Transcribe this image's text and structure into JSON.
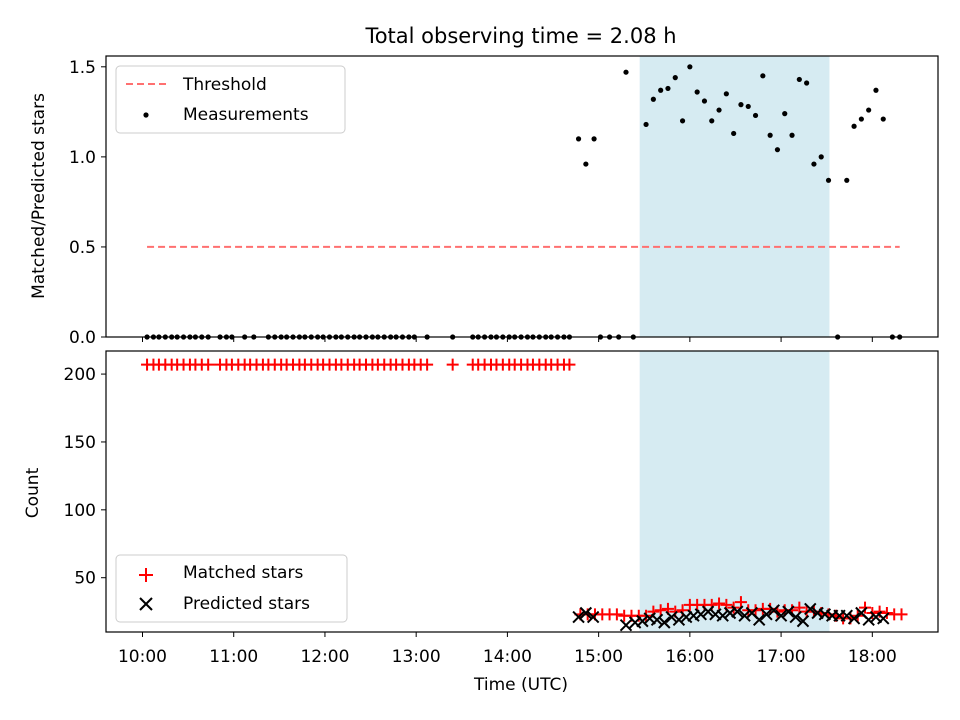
{
  "chart_data": {
    "type": "scatter",
    "title": "Total observing time = 2.08 h",
    "xlabel": "Time (UTC)",
    "x_ticks": [
      "10:00",
      "11:00",
      "12:00",
      "13:00",
      "14:00",
      "15:00",
      "16:00",
      "17:00",
      "18:00"
    ],
    "x_tick_hours": [
      10,
      11,
      12,
      13,
      14,
      15,
      16,
      17,
      18
    ],
    "xlim_hours": [
      9.6,
      18.72
    ],
    "highlight_span_hours": [
      15.45,
      17.53
    ],
    "highlight_color": "#add8e6",
    "panels": [
      {
        "ylabel": "Matched/Predicted stars",
        "ylim": [
          0,
          1.56
        ],
        "yticks": [
          "0.0",
          "0.5",
          "1.0",
          "1.5"
        ],
        "ytick_values": [
          0,
          0.5,
          1.0,
          1.5
        ],
        "legend": {
          "position": "upper-left",
          "entries": [
            "Threshold",
            "Measurements"
          ]
        },
        "series": [
          {
            "name": "Threshold",
            "kind": "dashed-line",
            "color": "#ff7070",
            "x": [
              10.05,
              18.3
            ],
            "y": [
              0.5,
              0.5
            ]
          },
          {
            "name": "Measurements",
            "kind": "dots",
            "color": "#000000",
            "x": [
              10.05,
              10.12,
              10.18,
              10.25,
              10.32,
              10.38,
              10.45,
              10.52,
              10.58,
              10.65,
              10.72,
              10.85,
              10.92,
              10.98,
              11.12,
              11.22,
              11.38,
              11.45,
              11.52,
              11.58,
              11.65,
              11.72,
              11.78,
              11.85,
              11.92,
              11.98,
              12.05,
              12.12,
              12.18,
              12.25,
              12.32,
              12.38,
              12.45,
              12.52,
              12.58,
              12.65,
              12.72,
              12.78,
              12.85,
              12.92,
              12.98,
              13.12,
              13.4,
              13.62,
              13.68,
              13.75,
              13.82,
              13.88,
              13.95,
              14.02,
              14.08,
              14.15,
              14.22,
              14.28,
              14.35,
              14.42,
              14.48,
              14.55,
              14.62,
              14.68,
              14.78,
              14.86,
              14.95,
              15.02,
              15.12,
              15.22,
              15.3,
              15.38,
              15.52,
              15.6,
              15.68,
              15.76,
              15.84,
              15.92,
              16.0,
              16.08,
              16.16,
              16.24,
              16.32,
              16.4,
              16.48,
              16.56,
              16.64,
              16.72,
              16.8,
              16.88,
              16.96,
              17.04,
              17.12,
              17.2,
              17.28,
              17.36,
              17.44,
              17.52,
              17.62,
              17.72,
              17.8,
              17.88,
              17.96,
              18.04,
              18.12,
              18.22,
              18.3
            ],
            "y": [
              0,
              0,
              0,
              0,
              0,
              0,
              0,
              0,
              0,
              0,
              0,
              0,
              0,
              0,
              0,
              0,
              0,
              0,
              0,
              0,
              0,
              0,
              0,
              0,
              0,
              0,
              0,
              0,
              0,
              0,
              0,
              0,
              0,
              0,
              0,
              0,
              0,
              0,
              0,
              0,
              0,
              0,
              0,
              0,
              0,
              0,
              0,
              0,
              0,
              0,
              0,
              0,
              0,
              0,
              0,
              0,
              0,
              0,
              0,
              0,
              1.1,
              0.96,
              1.1,
              0,
              0,
              0,
              1.47,
              0,
              1.18,
              1.32,
              1.37,
              1.38,
              1.44,
              1.2,
              1.5,
              1.36,
              1.31,
              1.2,
              1.26,
              1.35,
              1.13,
              1.29,
              1.28,
              1.23,
              1.45,
              1.12,
              1.04,
              1.24,
              1.12,
              1.43,
              1.41,
              0.96,
              1.0,
              0.87,
              0,
              0.87,
              1.17,
              1.21,
              1.26,
              1.37,
              1.21,
              0,
              0
            ]
          }
        ]
      },
      {
        "ylabel": "Count",
        "ylim": [
          10,
          217
        ],
        "yticks": [
          "50",
          "100",
          "150",
          "200"
        ],
        "ytick_values": [
          50,
          100,
          150,
          200
        ],
        "legend": {
          "position": "lower-left",
          "entries": [
            "Matched stars",
            "Predicted stars"
          ]
        },
        "series": [
          {
            "name": "Matched stars",
            "kind": "plus",
            "color": "#ff0000",
            "x": [
              10.05,
              10.12,
              10.18,
              10.25,
              10.32,
              10.38,
              10.45,
              10.52,
              10.58,
              10.65,
              10.72,
              10.85,
              10.92,
              10.98,
              11.05,
              11.12,
              11.18,
              11.25,
              11.32,
              11.38,
              11.45,
              11.52,
              11.58,
              11.65,
              11.72,
              11.78,
              11.85,
              11.92,
              11.98,
              12.05,
              12.12,
              12.18,
              12.25,
              12.32,
              12.38,
              12.45,
              12.52,
              12.58,
              12.65,
              12.72,
              12.78,
              12.85,
              12.92,
              12.98,
              13.05,
              13.12,
              13.4,
              13.62,
              13.68,
              13.75,
              13.82,
              13.88,
              13.95,
              14.02,
              14.08,
              14.15,
              14.22,
              14.28,
              14.35,
              14.42,
              14.48,
              14.55,
              14.62,
              14.68,
              14.8,
              14.88,
              14.96,
              15.04,
              15.12,
              15.2,
              15.28,
              15.36,
              15.44,
              15.52,
              15.6,
              15.68,
              15.76,
              15.84,
              15.92,
              16.0,
              16.08,
              16.16,
              16.24,
              16.32,
              16.4,
              16.48,
              16.56,
              16.64,
              16.72,
              16.8,
              16.88,
              16.96,
              17.04,
              17.12,
              17.2,
              17.28,
              17.36,
              17.44,
              17.52,
              17.6,
              17.68,
              17.76,
              17.84,
              17.92,
              18.0,
              18.08,
              18.16,
              18.24,
              18.32
            ],
            "y": [
              207,
              207,
              207,
              207,
              207,
              207,
              207,
              207,
              207,
              207,
              207,
              207,
              207,
              207,
              207,
              207,
              207,
              207,
              207,
              207,
              207,
              207,
              207,
              207,
              207,
              207,
              207,
              207,
              207,
              207,
              207,
              207,
              207,
              207,
              207,
              207,
              207,
              207,
              207,
              207,
              207,
              207,
              207,
              207,
              207,
              207,
              207,
              207,
              207,
              207,
              207,
              207,
              207,
              207,
              207,
              207,
              207,
              207,
              207,
              207,
              207,
              207,
              207,
              207,
              23,
              23,
              23,
              23,
              23,
              23,
              22,
              22,
              22,
              22,
              25,
              26,
              27,
              25,
              26,
              30,
              30,
              30,
              30,
              31,
              30,
              28,
              32,
              26,
              26,
              27,
              27,
              25,
              26,
              26,
              28,
              25,
              25,
              24,
              23,
              22,
              20,
              20,
              22,
              28,
              24,
              25,
              24,
              23,
              23
            ]
          },
          {
            "name": "Predicted stars",
            "kind": "cross",
            "color": "#000000",
            "x": [
              14.78,
              14.86,
              14.94,
              15.3,
              15.4,
              15.48,
              15.56,
              15.64,
              15.72,
              15.8,
              15.88,
              15.96,
              16.04,
              16.12,
              16.2,
              16.28,
              16.36,
              16.44,
              16.52,
              16.6,
              16.68,
              16.76,
              16.84,
              16.92,
              17.0,
              17.08,
              17.16,
              17.24,
              17.32,
              17.4,
              17.48,
              17.56,
              17.64,
              17.72,
              17.8,
              17.88,
              17.96,
              18.04,
              18.12
            ],
            "y": [
              21,
              24,
              21,
              15,
              17,
              18,
              20,
              19,
              17,
              21,
              19,
              21,
              22,
              23,
              25,
              23,
              22,
              24,
              25,
              22,
              24,
              19,
              23,
              26,
              22,
              25,
              21,
              18,
              27,
              24,
              23,
              22,
              22,
              22,
              20,
              24,
              19,
              21,
              20
            ]
          }
        ]
      }
    ]
  }
}
